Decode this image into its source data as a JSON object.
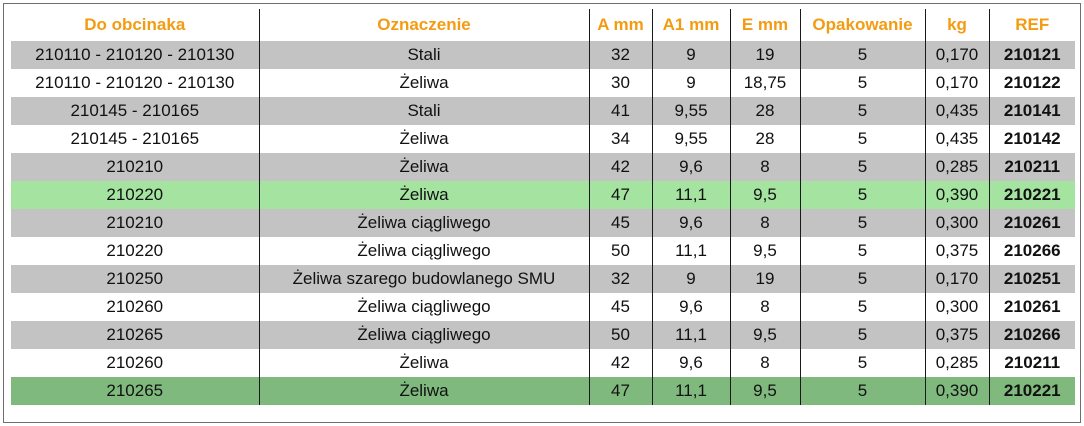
{
  "headers": [
    "Do obcinaka",
    "Oznaczenie",
    "A mm",
    "A1 mm",
    "E mm",
    "Opakowanie",
    "kg",
    "REF"
  ],
  "rows": [
    {
      "do": "210110 - 210120 - 210130",
      "oz": "Stali",
      "a": "32",
      "a1": "9",
      "e": "19",
      "op": "5",
      "kg": "0,170",
      "ref": "210121",
      "highlight": "none"
    },
    {
      "do": "210110 - 210120 - 210130",
      "oz": "Żeliwa",
      "a": "30",
      "a1": "9",
      "e": "18,75",
      "op": "5",
      "kg": "0,170",
      "ref": "210122",
      "highlight": "none"
    },
    {
      "do": "210145 - 210165",
      "oz": "Stali",
      "a": "41",
      "a1": "9,55",
      "e": "28",
      "op": "5",
      "kg": "0,435",
      "ref": "210141",
      "highlight": "none"
    },
    {
      "do": "210145 - 210165",
      "oz": "Żeliwa",
      "a": "34",
      "a1": "9,55",
      "e": "28",
      "op": "5",
      "kg": "0,435",
      "ref": "210142",
      "highlight": "none"
    },
    {
      "do": "210210",
      "oz": "Żeliwa",
      "a": "42",
      "a1": "9,6",
      "e": "8",
      "op": "5",
      "kg": "0,285",
      "ref": "210211",
      "highlight": "none"
    },
    {
      "do": "210220",
      "oz": "Żeliwa",
      "a": "47",
      "a1": "11,1",
      "e": "9,5",
      "op": "5",
      "kg": "0,390",
      "ref": "210221",
      "highlight": "light"
    },
    {
      "do": "210210",
      "oz": "Żeliwa ciągliwego",
      "a": "45",
      "a1": "9,6",
      "e": "8",
      "op": "5",
      "kg": "0,300",
      "ref": "210261",
      "highlight": "none"
    },
    {
      "do": "210220",
      "oz": "Żeliwa ciągliwego",
      "a": "50",
      "a1": "11,1",
      "e": "9,5",
      "op": "5",
      "kg": "0,375",
      "ref": "210266",
      "highlight": "none"
    },
    {
      "do": "210250",
      "oz": "Żeliwa szarego budowlanego SMU",
      "a": "32",
      "a1": "9",
      "e": "19",
      "op": "5",
      "kg": "0,170",
      "ref": "210251",
      "highlight": "none"
    },
    {
      "do": "210260",
      "oz": "Żeliwa ciągliwego",
      "a": "45",
      "a1": "9,6",
      "e": "8",
      "op": "5",
      "kg": "0,300",
      "ref": "210261",
      "highlight": "none"
    },
    {
      "do": "210265",
      "oz": "Żeliwa ciągliwego",
      "a": "50",
      "a1": "11,1",
      "e": "9,5",
      "op": "5",
      "kg": "0,375",
      "ref": "210266",
      "highlight": "none"
    },
    {
      "do": "210260",
      "oz": "Żeliwa",
      "a": "42",
      "a1": "9,6",
      "e": "8",
      "op": "5",
      "kg": "0,285",
      "ref": "210211",
      "highlight": "none"
    },
    {
      "do": "210265",
      "oz": "Żeliwa",
      "a": "47",
      "a1": "11,1",
      "e": "9,5",
      "op": "5",
      "kg": "0,390",
      "ref": "210221",
      "highlight": "dark"
    }
  ],
  "colors": {
    "header_text": "#f39c12",
    "row_gray": "#c3c3c3",
    "row_white": "#ffffff",
    "highlight_light": "#a4e4a0",
    "highlight_dark": "#7fb97d"
  }
}
